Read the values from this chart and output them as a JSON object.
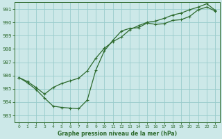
{
  "title": "Graphe pression niveau de la mer (hPa)",
  "background_color": "#cce8e8",
  "grid_color": "#99cccc",
  "line_color": "#2d6a2d",
  "xlim": [
    -0.5,
    23.5
  ],
  "ylim": [
    982.5,
    991.5
  ],
  "yticks": [
    983,
    984,
    985,
    986,
    987,
    988,
    989,
    990,
    991
  ],
  "xticks": [
    0,
    1,
    2,
    3,
    4,
    5,
    6,
    7,
    8,
    9,
    10,
    11,
    12,
    13,
    14,
    15,
    16,
    17,
    18,
    19,
    20,
    21,
    22,
    23
  ],
  "series1_x": [
    0,
    1,
    2,
    3,
    4,
    5,
    6,
    7,
    8,
    9,
    10,
    11,
    12,
    13,
    14,
    15,
    16,
    17,
    18,
    19,
    20,
    21,
    22,
    23
  ],
  "series1_y": [
    985.85,
    985.45,
    984.95,
    984.3,
    983.7,
    983.6,
    983.55,
    983.5,
    984.15,
    986.4,
    987.85,
    988.65,
    989.35,
    989.55,
    989.6,
    989.95,
    989.85,
    989.9,
    990.15,
    990.2,
    990.45,
    990.95,
    991.15,
    990.85
  ],
  "series2_x": [
    0,
    1,
    2,
    3,
    4,
    5,
    6,
    7,
    8,
    9,
    10,
    11,
    12,
    13,
    14,
    15,
    16,
    17,
    18,
    19,
    20,
    21,
    22,
    23
  ],
  "series2_y": [
    985.85,
    985.55,
    985.1,
    984.6,
    985.1,
    985.4,
    985.6,
    985.8,
    986.35,
    987.3,
    988.05,
    988.55,
    988.9,
    989.45,
    989.75,
    990.0,
    990.1,
    990.3,
    990.55,
    990.7,
    990.95,
    991.15,
    991.4,
    990.9
  ]
}
